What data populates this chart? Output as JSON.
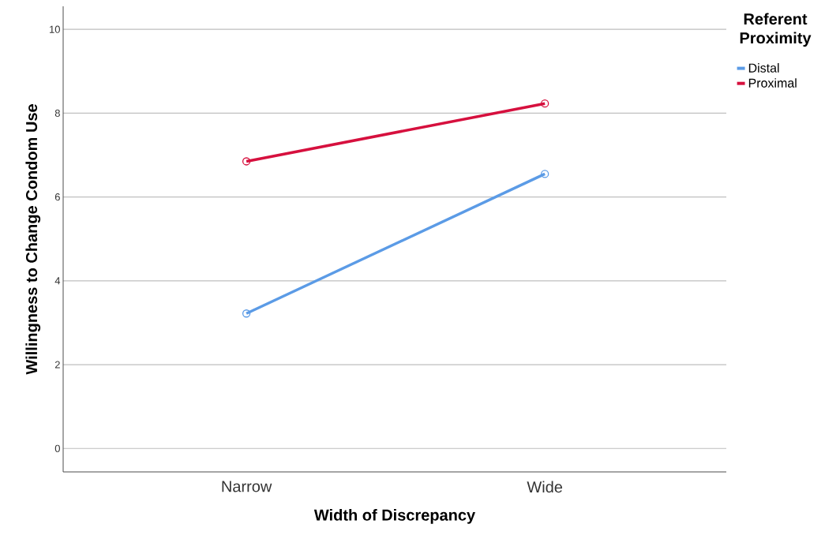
{
  "chart_data": {
    "type": "line",
    "xlabel": "Width of Discrepancy",
    "ylabel": "Willingness to Change Condom Use",
    "legend_title": "Referent Proximity",
    "categories": [
      "Narrow",
      "Wide"
    ],
    "series": [
      {
        "name": "Distal",
        "color": "#5b9be6",
        "values": [
          3.22,
          6.55
        ]
      },
      {
        "name": "Proximal",
        "color": "#d6103e",
        "values": [
          6.85,
          8.23
        ]
      }
    ],
    "ylim": [
      -0.56,
      10.55
    ],
    "yticks": [
      0,
      2,
      4,
      6,
      8,
      10
    ],
    "grid": "y",
    "legend": "top right",
    "marker": "circle",
    "line_style": "solid"
  }
}
